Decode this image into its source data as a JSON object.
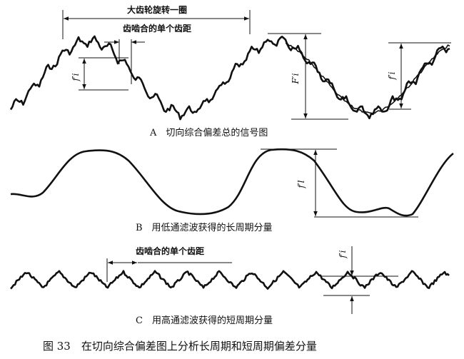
{
  "panel_a": {
    "rotation_label": "大齿轮旋转一圈",
    "pitch_label": "齿啮合的单个齿距",
    "symbol_left": "f′i",
    "symbol_total": "F′i",
    "symbol_right": "f′i",
    "caption": "A　切向综合偏差总的信号图"
  },
  "panel_b": {
    "symbol": "f′l",
    "caption": "B　用低通滤波获得的长周期分量"
  },
  "panel_c": {
    "pitch_label": "齿啮合的单个齿距",
    "symbol": "f′i",
    "caption": "C　用高通滤波获得的短周期分量"
  },
  "figure_caption": "图 33　在切向综合偏差图上分析长周期和短周期偏差分量",
  "colors": {
    "ink": "#111111",
    "background": "#ffffff"
  }
}
